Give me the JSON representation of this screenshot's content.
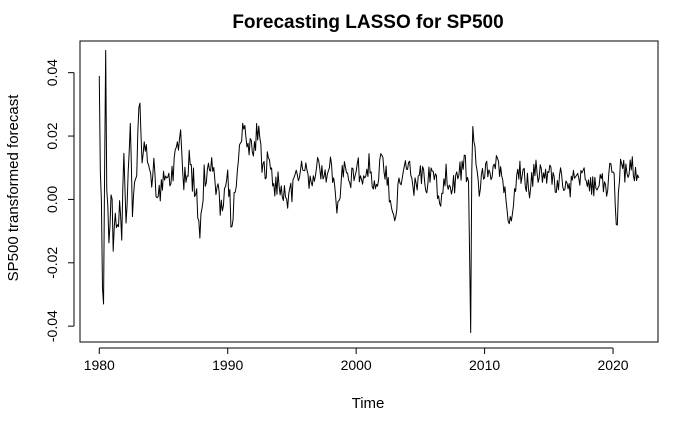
{
  "chart_data": {
    "type": "line",
    "title": "Forecasting LASSO for SP500",
    "xlabel": "Time",
    "ylabel": "SP500 transformed forecast",
    "xlim": [
      1978.5,
      2023.5
    ],
    "ylim": [
      -0.045,
      0.05
    ],
    "x_ticks": [
      1980,
      1990,
      2000,
      2010,
      2020
    ],
    "x_tick_labels": [
      "1980",
      "1990",
      "2000",
      "2010",
      "2020"
    ],
    "y_ticks": [
      -0.04,
      -0.02,
      0.0,
      0.02,
      0.04
    ],
    "y_tick_labels": [
      "-0.04",
      "-0.02",
      "0.00",
      "0.02",
      "0.04"
    ],
    "grid": false,
    "series": [
      {
        "name": "forecast",
        "color": "#000000",
        "start": 1980.0,
        "frequency": 12,
        "anchors": [
          [
            1980.0,
            0.039
          ],
          [
            1980.08,
            0.004
          ],
          [
            1980.17,
            -0.002
          ],
          [
            1980.25,
            -0.028
          ],
          [
            1980.33,
            -0.033
          ],
          [
            1980.42,
            0.012
          ],
          [
            1980.5,
            0.047
          ],
          [
            1980.58,
            0.005
          ],
          [
            1980.67,
            -0.004
          ],
          [
            1980.75,
            -0.01
          ],
          [
            1980.92,
            0.002
          ],
          [
            1981.08,
            -0.012
          ],
          [
            1981.25,
            -0.006
          ],
          [
            1981.42,
            -0.013
          ],
          [
            1981.58,
            0.001
          ],
          [
            1981.75,
            -0.008
          ],
          [
            1981.92,
            0.013
          ],
          [
            1982.08,
            -0.009
          ],
          [
            1982.25,
            0.004
          ],
          [
            1982.42,
            0.024
          ],
          [
            1982.58,
            -0.004
          ],
          [
            1982.75,
            0.01
          ],
          [
            1982.92,
            0.012
          ],
          [
            1983.08,
            0.029
          ],
          [
            1983.25,
            0.02
          ],
          [
            1983.42,
            0.013
          ],
          [
            1983.58,
            0.016
          ],
          [
            1983.75,
            0.011
          ],
          [
            1984.0,
            0.006
          ],
          [
            1984.25,
            0.009
          ],
          [
            1984.5,
            -0.004
          ],
          [
            1985.0,
            0.01
          ],
          [
            1985.5,
            0.005
          ],
          [
            1986.0,
            0.016
          ],
          [
            1986.3,
            0.022
          ],
          [
            1986.6,
            0.006
          ],
          [
            1987.0,
            0.011
          ],
          [
            1987.5,
            0.003
          ],
          [
            1987.8,
            -0.012
          ],
          [
            1988.2,
            0.008
          ],
          [
            1988.7,
            0.012
          ],
          [
            1989.2,
            0.004
          ],
          [
            1989.6,
            -0.006
          ],
          [
            1990.0,
            0.009
          ],
          [
            1990.3,
            -0.007
          ],
          [
            1990.7,
            0.005
          ],
          [
            1991.0,
            0.02
          ],
          [
            1991.2,
            0.024
          ],
          [
            1991.5,
            0.013
          ],
          [
            1992.0,
            0.018
          ],
          [
            1992.4,
            0.02
          ],
          [
            1992.8,
            0.008
          ],
          [
            1993.2,
            0.012
          ],
          [
            1993.6,
            0.004
          ],
          [
            1994.0,
            0.006
          ],
          [
            1994.5,
            0.0
          ],
          [
            1995.0,
            0.002
          ],
          [
            1995.5,
            0.008
          ],
          [
            1996.0,
            0.01
          ],
          [
            1996.5,
            0.004
          ],
          [
            1997.0,
            0.012
          ],
          [
            1997.5,
            0.006
          ],
          [
            1998.0,
            0.011
          ],
          [
            1998.5,
            -0.002
          ],
          [
            1999.0,
            0.01
          ],
          [
            1999.5,
            0.004
          ],
          [
            2000.0,
            0.012
          ],
          [
            2000.5,
            0.006
          ],
          [
            2001.0,
            0.011
          ],
          [
            2001.5,
            0.002
          ],
          [
            2002.0,
            0.013
          ],
          [
            2002.5,
            0.004
          ],
          [
            2003.0,
            -0.004
          ],
          [
            2003.5,
            0.008
          ],
          [
            2004.0,
            0.012
          ],
          [
            2004.5,
            0.004
          ],
          [
            2005.0,
            0.009
          ],
          [
            2005.5,
            0.005
          ],
          [
            2006.0,
            0.01
          ],
          [
            2006.5,
            -0.002
          ],
          [
            2007.0,
            0.008
          ],
          [
            2007.5,
            0.004
          ],
          [
            2008.0,
            0.008
          ],
          [
            2008.4,
            0.012
          ],
          [
            2008.75,
            0.006
          ],
          [
            2008.83,
            -0.018
          ],
          [
            2008.92,
            -0.042
          ],
          [
            2009.0,
            0.008
          ],
          [
            2009.1,
            0.023
          ],
          [
            2009.3,
            0.012
          ],
          [
            2009.6,
            0.004
          ],
          [
            2010.0,
            0.01
          ],
          [
            2010.5,
            0.006
          ],
          [
            2011.0,
            0.013
          ],
          [
            2011.5,
            0.004
          ],
          [
            2012.0,
            -0.009
          ],
          [
            2012.5,
            0.009
          ],
          [
            2013.0,
            0.008
          ],
          [
            2013.5,
            0.004
          ],
          [
            2014.0,
            0.01
          ],
          [
            2014.5,
            0.006
          ],
          [
            2015.0,
            0.009
          ],
          [
            2015.5,
            0.004
          ],
          [
            2016.0,
            0.008
          ],
          [
            2016.5,
            0.001
          ],
          [
            2017.0,
            0.01
          ],
          [
            2017.5,
            0.006
          ],
          [
            2018.0,
            0.007
          ],
          [
            2018.5,
            0.003
          ],
          [
            2019.0,
            0.008
          ],
          [
            2019.5,
            0.002
          ],
          [
            2019.8,
            0.012
          ],
          [
            2020.1,
            0.006
          ],
          [
            2020.3,
            -0.01
          ],
          [
            2020.6,
            0.013
          ],
          [
            2021.0,
            0.008
          ],
          [
            2021.4,
            0.012
          ],
          [
            2021.8,
            0.006
          ],
          [
            2022.0,
            0.01
          ]
        ]
      }
    ]
  }
}
